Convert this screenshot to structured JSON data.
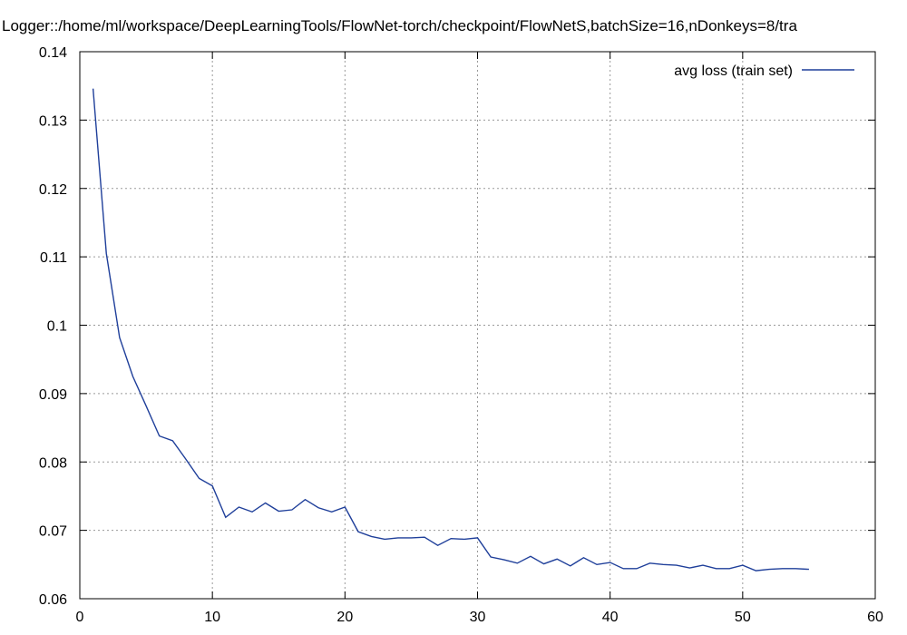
{
  "chart_data": {
    "type": "line",
    "title": "Logger::/home/ml/workspace/DeepLearningTools/FlowNet-torch/checkpoint/FlowNetS,batchSize=16,nDonkeys=8/tra",
    "xlabel": "",
    "ylabel": "",
    "xlim": [
      0,
      60
    ],
    "ylim": [
      0.06,
      0.14
    ],
    "xticks": [
      0,
      10,
      20,
      30,
      40,
      50,
      60
    ],
    "xtick_labels": [
      "0",
      "10",
      "20",
      "30",
      "40",
      "50",
      "60"
    ],
    "yticks": [
      0.06,
      0.07,
      0.08,
      0.09,
      0.1,
      0.11,
      0.12,
      0.13,
      0.14
    ],
    "ytick_labels": [
      "0.06",
      "0.07",
      "0.08",
      "0.09",
      "0.1",
      "0.11",
      "0.12",
      "0.13",
      "0.14"
    ],
    "grid": true,
    "legend_position": "top-right",
    "series": [
      {
        "name": "avg loss (train set)",
        "color": "#1f3f9a",
        "x": [
          1,
          2,
          3,
          4,
          5,
          6,
          7,
          8,
          9,
          10,
          11,
          12,
          13,
          14,
          15,
          16,
          17,
          18,
          19,
          20,
          21,
          22,
          23,
          24,
          25,
          26,
          27,
          28,
          29,
          30,
          31,
          32,
          33,
          34,
          35,
          36,
          37,
          38,
          39,
          40,
          41,
          42,
          43,
          44,
          45,
          46,
          47,
          48,
          49,
          50,
          51,
          52,
          53,
          54,
          55
        ],
        "y": [
          0.1346,
          0.1105,
          0.0982,
          0.0925,
          0.0882,
          0.0838,
          0.0831,
          0.0804,
          0.0776,
          0.0765,
          0.0719,
          0.0734,
          0.0727,
          0.074,
          0.0728,
          0.073,
          0.0745,
          0.0733,
          0.0727,
          0.0734,
          0.0698,
          0.0691,
          0.0687,
          0.0689,
          0.0689,
          0.069,
          0.0678,
          0.0688,
          0.0687,
          0.0689,
          0.0661,
          0.0657,
          0.0652,
          0.0662,
          0.0651,
          0.0658,
          0.0648,
          0.066,
          0.065,
          0.0653,
          0.0644,
          0.0644,
          0.0652,
          0.065,
          0.0649,
          0.0645,
          0.0649,
          0.0644,
          0.0644,
          0.0649,
          0.0641,
          0.0643,
          0.0644,
          0.0644,
          0.0643
        ]
      }
    ]
  }
}
